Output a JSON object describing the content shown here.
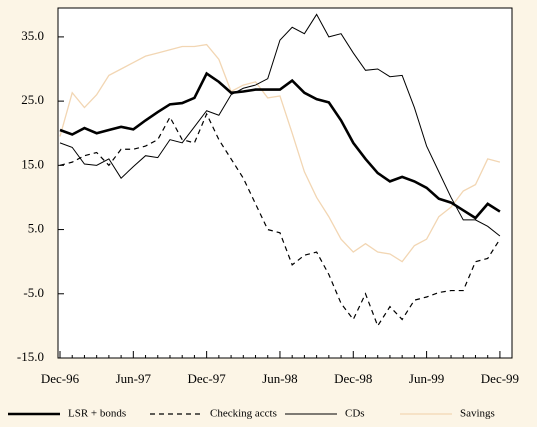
{
  "chart_data": {
    "type": "line",
    "categories": [
      "Dec-96",
      null,
      null,
      null,
      null,
      null,
      "Jun-97",
      null,
      null,
      null,
      null,
      null,
      "Dec-97",
      null,
      null,
      null,
      null,
      null,
      "Jun-98",
      null,
      null,
      null,
      null,
      null,
      "Dec-98",
      null,
      null,
      null,
      null,
      null,
      "Jun-99",
      null,
      null,
      null,
      null,
      null,
      "Dec-99"
    ],
    "ylim": [
      -15,
      39.5
    ],
    "yticks": [
      {
        "value": -15,
        "label": "-15.0"
      },
      {
        "value": -5,
        "label": "-5.0"
      },
      {
        "value": 5,
        "label": "5.0"
      },
      {
        "value": 15,
        "label": "15.0"
      },
      {
        "value": 25,
        "label": "25.0"
      },
      {
        "value": 35,
        "label": "35.0"
      }
    ],
    "series": [
      {
        "name": "LSR + bonds",
        "color": "#000000",
        "line_width": 2.6,
        "dash": "solid",
        "values": [
          20.5,
          19.8,
          20.8,
          20,
          20.5,
          21,
          20.6,
          22,
          23.3,
          24.5,
          24.7,
          25.5,
          29.3,
          28,
          26.3,
          26.5,
          26.8,
          26.8,
          26.8,
          28.2,
          26.3,
          25.3,
          24.8,
          22,
          18.5,
          16,
          13.8,
          12.5,
          13.2,
          12.5,
          11.5,
          9.8,
          9.2,
          8,
          6.8,
          9,
          7.8
        ]
      },
      {
        "name": "Checking accts",
        "color": "#000000",
        "line_width": 1.2,
        "dash": "dashed",
        "values": [
          15,
          15.5,
          16.5,
          17,
          15,
          17.5,
          17.5,
          18,
          19,
          22.5,
          19,
          18.5,
          23,
          19,
          16,
          13,
          9,
          5,
          4.5,
          -0.5,
          1,
          1.5,
          -2,
          -6.5,
          -9,
          -5,
          -10,
          -7,
          -9,
          -6,
          -5.5,
          -4.8,
          -4.5,
          -4.5,
          0,
          0.5,
          3.5
        ]
      },
      {
        "name": "CDs",
        "color": "#000000",
        "line_width": 1,
        "dash": "solid",
        "values": [
          18.5,
          17.8,
          15.2,
          15,
          16,
          13,
          14.8,
          16.5,
          16.2,
          19,
          18.5,
          21,
          23.5,
          22.8,
          26,
          27,
          27.5,
          28.5,
          34.5,
          36.5,
          35.5,
          38.5,
          35,
          35.5,
          32.5,
          29.8,
          30,
          28.8,
          29,
          24,
          18,
          14,
          10,
          6.5,
          6.5,
          5.5,
          4
        ]
      },
      {
        "name": "Savings",
        "color": "#f2d6b3",
        "line_width": 1.3,
        "dash": "solid",
        "values": [
          19.5,
          26.3,
          24,
          26,
          29,
          30,
          31,
          32,
          32.5,
          33,
          33.5,
          33.5,
          33.8,
          31.5,
          26.5,
          27.5,
          28,
          25.5,
          25.8,
          20,
          14,
          10,
          7,
          3.5,
          1.5,
          2.8,
          1.5,
          1.2,
          0,
          2.5,
          3.5,
          7,
          8.5,
          11,
          12,
          16,
          15.5
        ]
      }
    ]
  }
}
